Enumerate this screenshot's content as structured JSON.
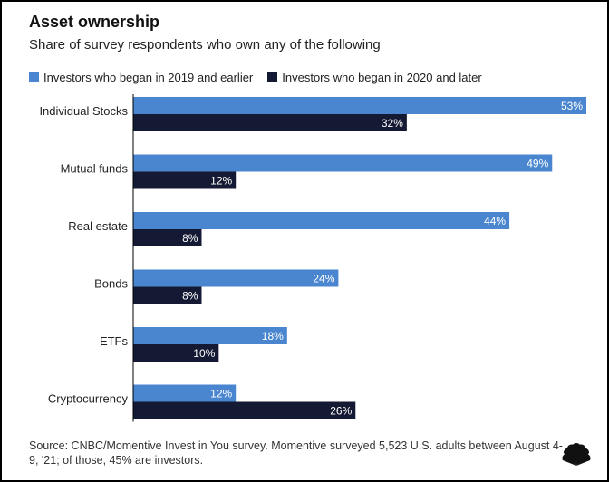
{
  "title": "Asset ownership",
  "subtitle": "Share of survey respondents who own any of the following",
  "source": "Source: CNBC/Momentive Invest in You survey. Momentive surveyed 5,523 U.S. adults between August 4-9, '21; of those, 45% are investors.",
  "logo_text": "CNBC",
  "colors": {
    "series1": "#4a86cf",
    "series2": "#141a33",
    "text": "#222222"
  },
  "chart_data": {
    "type": "bar",
    "orientation": "horizontal",
    "categories": [
      "Individual Stocks",
      "Mutual funds",
      "Real estate",
      "Bonds",
      "ETFs",
      "Cryptocurrency"
    ],
    "series": [
      {
        "name": "Investors who began in 2019 and earlier",
        "values": [
          53,
          49,
          44,
          24,
          18,
          12
        ],
        "labels": [
          "53%",
          "49%",
          "44%",
          "24%",
          "18%",
          "12%"
        ]
      },
      {
        "name": "Investors who began in 2020 and later",
        "values": [
          32,
          12,
          8,
          8,
          10,
          26
        ],
        "labels": [
          "32%",
          "12%",
          "8%",
          "8%",
          "10%",
          "26%"
        ]
      }
    ],
    "unit": "%",
    "xlim": [
      0,
      53
    ],
    "legend": "top",
    "grid": false
  }
}
